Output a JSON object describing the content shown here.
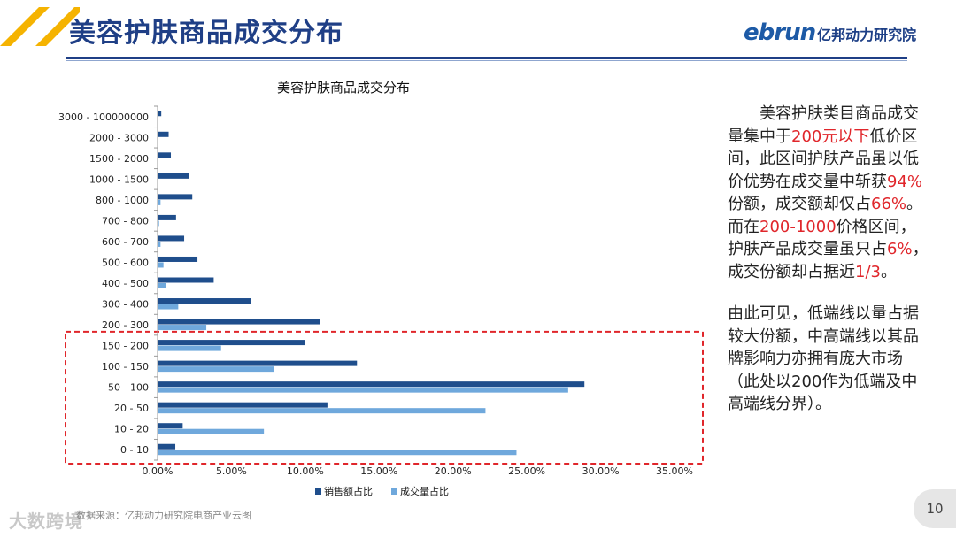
{
  "header": {
    "title": "美容护肤商品成交分布",
    "logo_word": "ebrun",
    "logo_sub": "亿邦动力研究院"
  },
  "chart_data": {
    "type": "bar",
    "orientation": "horizontal",
    "title": "美容护肤商品成交分布",
    "categories": [
      "3000 - 100000000",
      "2000 - 3000",
      "1500 - 2000",
      "1000 - 1500",
      "800 - 1000",
      "700 - 800",
      "600 - 700",
      "500 - 600",
      "400 - 500",
      "300 - 400",
      "200 - 300",
      "150 - 200",
      "100 - 150",
      "50 - 100",
      "20 - 50",
      "10 - 20",
      "0 - 10"
    ],
    "series": [
      {
        "name": "销售额占比",
        "color": "#1f4e8c",
        "values": [
          0.25,
          0.75,
          0.9,
          2.1,
          2.35,
          1.25,
          1.8,
          2.7,
          3.8,
          6.3,
          11.0,
          10.0,
          13.5,
          28.9,
          11.5,
          1.7,
          1.2
        ]
      },
      {
        "name": "成交量占比",
        "color": "#6fa8dc",
        "values": [
          0.0,
          0.0,
          0.0,
          0.0,
          0.2,
          0.1,
          0.2,
          0.4,
          0.6,
          1.4,
          3.3,
          4.3,
          7.9,
          27.8,
          22.2,
          7.2,
          24.3
        ]
      }
    ],
    "x_ticks": [
      "0.00%",
      "5.00%",
      "10.00%",
      "15.00%",
      "20.00%",
      "25.00%",
      "30.00%",
      "35.00%"
    ],
    "xlim": [
      0,
      35
    ],
    "legend_position": "bottom",
    "highlight_range": [
      "0 - 10",
      "150 - 200"
    ]
  },
  "side_text": {
    "p1_a": "美容护肤类目商品成交量集中于",
    "p1_h1": "200元以下",
    "p1_b": "低价区间，此区间护肤产品虽以低价优势在成交量中斩获",
    "p1_h2": "94%",
    "p1_c": "份额，成交额却仅占",
    "p1_h3": "66%",
    "p1_d": "。而在",
    "p1_h4": "200-1000",
    "p1_e": "价格区间，护肤产品成交量虽只占",
    "p1_h5": "6%",
    "p1_f": "，成交份额却占据近",
    "p1_h6": "1/3",
    "p1_g": "。",
    "p2": "由此可见，低端线以量占据较大份额，中高端线以其品牌影响力亦拥有庞大市场（此处以200作为低端及中高端线分界）。"
  },
  "footer": {
    "source": "数据来源：亿邦动力研究院电商产业云图",
    "watermark": "大数跨境",
    "page_number": "10"
  }
}
